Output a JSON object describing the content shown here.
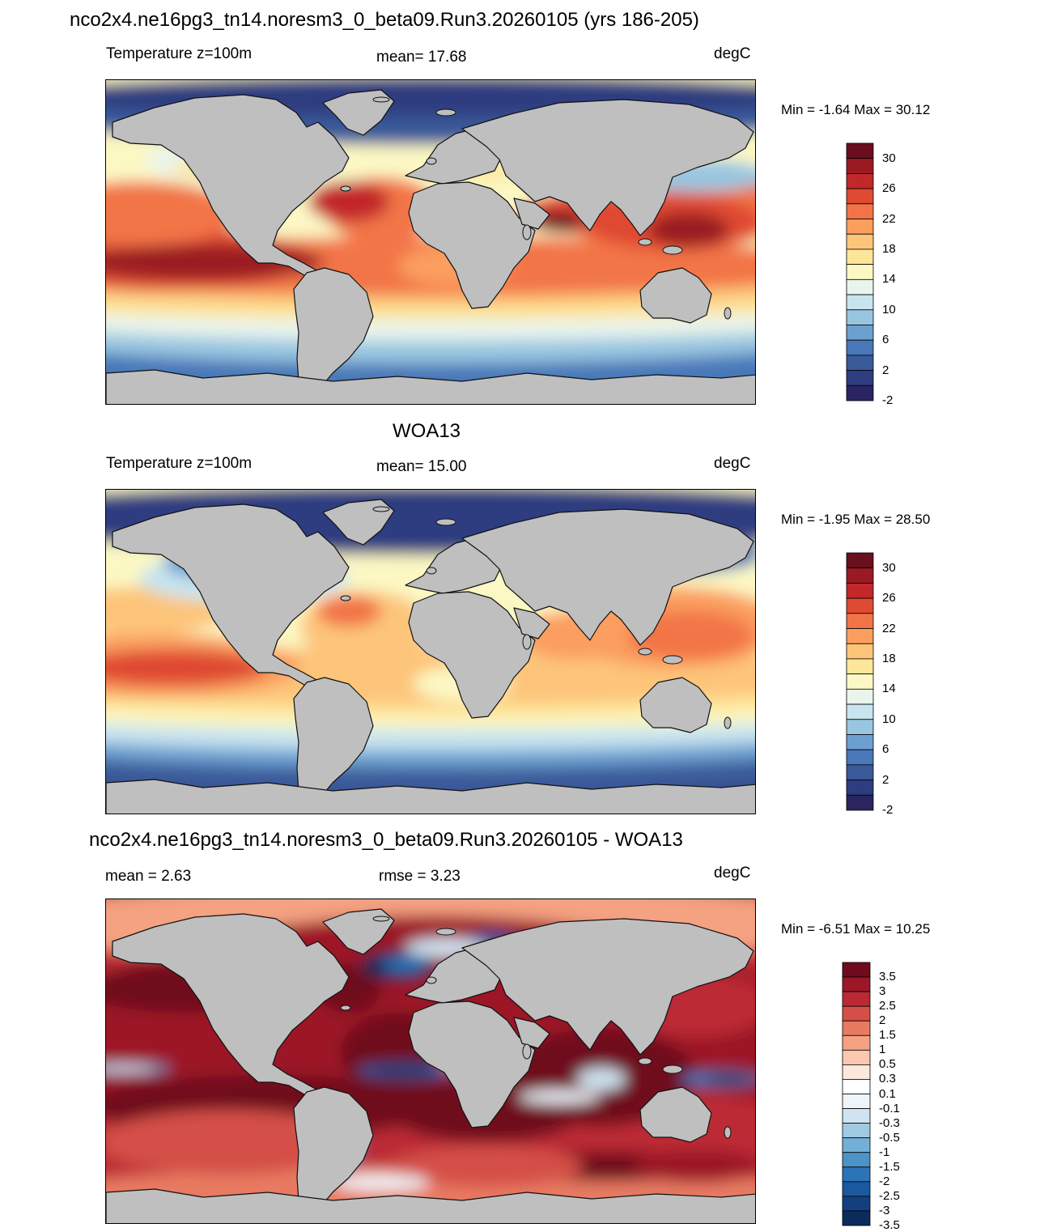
{
  "colors": {
    "land": "#bfbfbf",
    "coast": "#111111",
    "temp_levels": [
      "#2a2460",
      "#2e3c80",
      "#3a5a9a",
      "#4a78b8",
      "#6da0d0",
      "#98c6e0",
      "#c7e4ef",
      "#e9f4ec",
      "#fcf8c4",
      "#fde59a",
      "#fdc57a",
      "#fb9e5e",
      "#f27446",
      "#df4a32",
      "#c2282a",
      "#9a1a24",
      "#6a0f1e"
    ],
    "diff_levels": [
      "#0b2c5a",
      "#133f80",
      "#1a58a0",
      "#2c74b8",
      "#4b93c8",
      "#72b0d8",
      "#a0cae4",
      "#cfe3f0",
      "#eef5fa",
      "#ffffff",
      "#fde8dc",
      "#fac8b0",
      "#f4a282",
      "#e87a62",
      "#d45046",
      "#bb2a34",
      "#9c1828",
      "#6f0b1d"
    ]
  },
  "panels": [
    {
      "title": "nco2x4.ne16pg3_tn14.noresm3_0_beta09.Run3.20260105 (yrs 186-205)",
      "left_label": "Temperature z=100m",
      "center_label": "mean=  17.68",
      "units": "degC",
      "minmax": "Min =  -1.64 Max =  30.12",
      "field": "model",
      "colorbar_labels": [
        "30",
        "26",
        "22",
        "18",
        "14",
        "10",
        "6",
        "2",
        "-2"
      ]
    },
    {
      "title": "WOA13",
      "left_label": "Temperature z=100m",
      "center_label": "mean=  15.00",
      "units": "degC",
      "minmax": "Min =  -1.95 Max =  28.50",
      "field": "obs",
      "colorbar_labels": [
        "30",
        "26",
        "22",
        "18",
        "14",
        "10",
        "6",
        "2",
        "-2"
      ]
    },
    {
      "title": "nco2x4.ne16pg3_tn14.noresm3_0_beta09.Run3.20260105 - WOA13",
      "left_label": "mean =   2.63",
      "center_label": "rmse =   3.23",
      "units": "degC",
      "minmax": "Min =  -6.51 Max =  10.25",
      "field": "diff",
      "colorbar_labels": [
        "3.5",
        "3",
        "2.5",
        "2",
        "1.5",
        "1",
        "0.5",
        "0.3",
        "0.1",
        "-0.1",
        "-0.3",
        "-0.5",
        "-1",
        "-1.5",
        "-2",
        "-2.5",
        "-3",
        "-3.5"
      ]
    }
  ]
}
